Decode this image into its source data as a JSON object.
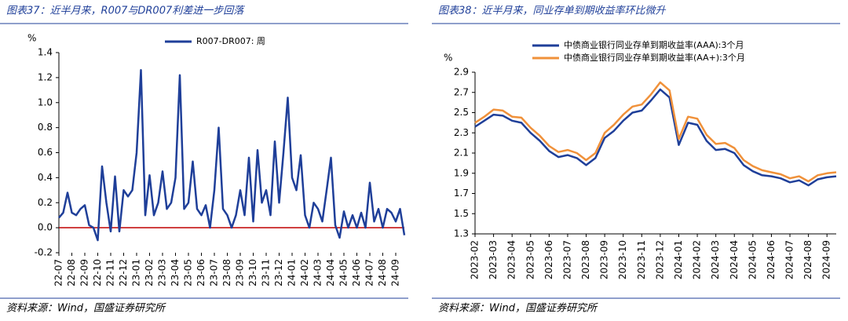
{
  "chart_data": [
    {
      "type": "line",
      "title": "图表37：近半月来，R007与DR007利差进一步回落",
      "source": "资料来源：Wind，国盛证券研究所",
      "y_label": "%",
      "categories": [
        "22-07",
        null,
        null,
        "22-08",
        null,
        null,
        "22-09",
        null,
        null,
        "22-10",
        null,
        null,
        "22-11",
        null,
        null,
        "22-12",
        null,
        null,
        "23-01",
        null,
        null,
        "23-02",
        null,
        null,
        "23-03",
        null,
        null,
        "23-04",
        null,
        null,
        "23-05",
        null,
        null,
        "23-06",
        null,
        null,
        "23-07",
        null,
        null,
        "23-08",
        null,
        null,
        "23-09",
        null,
        null,
        "23-10",
        null,
        null,
        "23-11",
        null,
        null,
        "23-12",
        null,
        null,
        "24-01",
        null,
        null,
        "24-02",
        null,
        null,
        "24-03",
        null,
        null,
        "24-04",
        null,
        null,
        "24-05",
        null,
        null,
        "24-06",
        null,
        null,
        "24-07",
        null,
        null,
        "24-08",
        null,
        null,
        "24-09",
        null,
        null
      ],
      "series": [
        {
          "name": "R007-DR007: 周",
          "color": "#1f3f99",
          "values": [
            0.08,
            0.12,
            0.28,
            0.12,
            0.1,
            0.15,
            0.18,
            0.02,
            0.0,
            -0.1,
            0.49,
            0.2,
            -0.03,
            0.41,
            -0.03,
            0.3,
            0.25,
            0.3,
            0.6,
            1.26,
            0.1,
            0.42,
            0.1,
            0.2,
            0.45,
            0.15,
            0.2,
            0.4,
            1.22,
            0.15,
            0.2,
            0.53,
            0.15,
            0.1,
            0.18,
            0.0,
            0.3,
            0.8,
            0.15,
            0.1,
            0.0,
            0.1,
            0.3,
            0.1,
            0.56,
            0.05,
            0.62,
            0.2,
            0.3,
            0.1,
            0.69,
            0.2,
            0.6,
            1.04,
            0.4,
            0.3,
            0.58,
            0.1,
            0.0,
            0.2,
            0.15,
            0.05,
            0.3,
            0.56,
            0.02,
            -0.08,
            0.13,
            0.0,
            0.1,
            0.0,
            0.12,
            0.0,
            0.36,
            0.05,
            0.15,
            0.0,
            0.15,
            0.12,
            0.05,
            0.15,
            -0.06
          ]
        }
      ],
      "ylim": [
        -0.2,
        1.4
      ],
      "yticks": [
        -0.2,
        {
          "value": 0,
          "label": "0.0"
        },
        0.2,
        0.4,
        0.6,
        0.8,
        {
          "value": 1,
          "label": "1.0"
        },
        1.2,
        1.4
      ],
      "zero_line_color": "#c00000"
    },
    {
      "type": "line",
      "title": "图表38：近半月来，同业存单到期收益率环比微升",
      "source": "资料来源：Wind，国盛证券研究所",
      "y_label": "%",
      "categories": [
        "2023-02",
        null,
        "2023-03",
        null,
        "2023-04",
        null,
        "2023-05",
        null,
        "2023-06",
        null,
        "2023-07",
        null,
        "2023-08",
        null,
        "2023-09",
        null,
        "2023-10",
        null,
        "2023-11",
        null,
        "2023-12",
        null,
        "2024-01",
        null,
        "2024-02",
        null,
        "2024-03",
        null,
        "2024-04",
        null,
        "2024-05",
        null,
        "2024-06",
        null,
        "2024-07",
        null,
        "2024-08",
        null,
        "2024-09",
        null
      ],
      "series": [
        {
          "name": "中债商业银行同业存单到期收益率(AAA):3个月",
          "color": "#1f3f99",
          "values": [
            2.36,
            2.42,
            2.48,
            2.47,
            2.42,
            2.4,
            2.3,
            2.22,
            2.12,
            2.06,
            2.08,
            2.05,
            1.98,
            2.05,
            2.25,
            2.32,
            2.42,
            2.5,
            2.52,
            2.62,
            2.73,
            2.65,
            2.18,
            2.4,
            2.38,
            2.22,
            2.13,
            2.14,
            2.1,
            1.98,
            1.92,
            1.88,
            1.87,
            1.85,
            1.81,
            1.83,
            1.78,
            1.84,
            1.86,
            1.87
          ]
        },
        {
          "name": "中债商业银行同业存单到期收益率(AA+):3个月",
          "color": "#f0913a",
          "values": [
            2.4,
            2.46,
            2.53,
            2.52,
            2.46,
            2.45,
            2.35,
            2.27,
            2.17,
            2.11,
            2.13,
            2.1,
            2.03,
            2.1,
            2.3,
            2.38,
            2.48,
            2.56,
            2.58,
            2.68,
            2.8,
            2.72,
            2.24,
            2.46,
            2.44,
            2.28,
            2.19,
            2.2,
            2.15,
            2.03,
            1.97,
            1.93,
            1.91,
            1.89,
            1.85,
            1.87,
            1.82,
            1.88,
            1.9,
            1.91
          ]
        }
      ],
      "ylim": [
        1.3,
        2.9
      ],
      "yticks": [
        1.3,
        1.5,
        1.7,
        1.9,
        2.1,
        2.3,
        2.5,
        2.7,
        2.9
      ]
    }
  ]
}
